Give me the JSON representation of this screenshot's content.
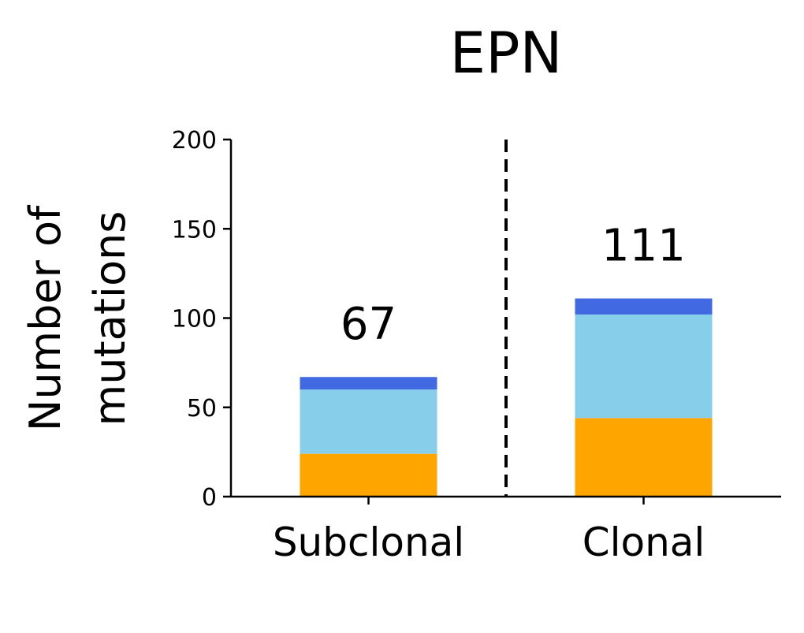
{
  "chart_data": {
    "type": "bar",
    "stacked": true,
    "title": "EPN",
    "ylabel_lines": [
      "Number of",
      "mutations"
    ],
    "xlabel": "",
    "categories": [
      "Subclonal",
      "Clonal"
    ],
    "ylim": [
      0,
      200
    ],
    "yticks": [
      "0",
      "50",
      "100",
      "150",
      "200"
    ],
    "series": [
      {
        "values": [
          24,
          44
        ],
        "color": "#ffa500"
      },
      {
        "values": [
          36,
          58
        ],
        "color": "#87ceeb"
      },
      {
        "values": [
          7,
          9
        ],
        "color": "#4169e1"
      }
    ],
    "totals": [
      "67",
      "111"
    ],
    "divider": {
      "style": "dashed",
      "color": "#000000"
    },
    "grid": false
  }
}
